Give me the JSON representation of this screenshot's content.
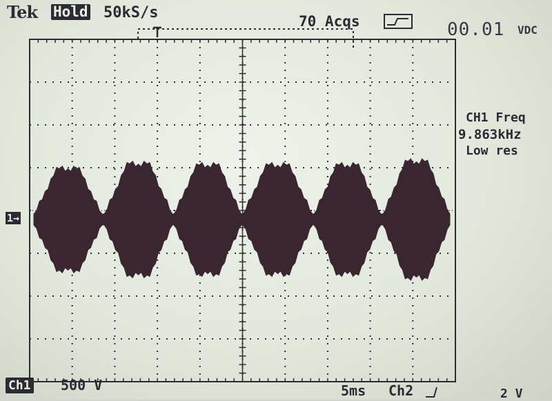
{
  "header": {
    "brand": "Tek",
    "state": "Hold",
    "sample_rate": "50kS/s",
    "acquisitions": "70 Acqs",
    "trigger_icon": "trigger-mode-icon",
    "reading_value": "00.01",
    "reading_unit": "VDC"
  },
  "measurement": {
    "title": "CH1 Freq",
    "value": "9.863kHz",
    "resolution": "Low res"
  },
  "footer": {
    "channel": "Ch1",
    "volts_per_div": "500 V",
    "time_per_div": "5ms",
    "trigger_source": "Ch2",
    "trigger_slope_icon": "rising-edge-icon",
    "ch2_level": "2 V"
  },
  "channel_marker": "1→",
  "colors": {
    "screen_background": "#e2e8dc",
    "trace": "#3a2630",
    "graticule": "#2c2a33"
  }
}
